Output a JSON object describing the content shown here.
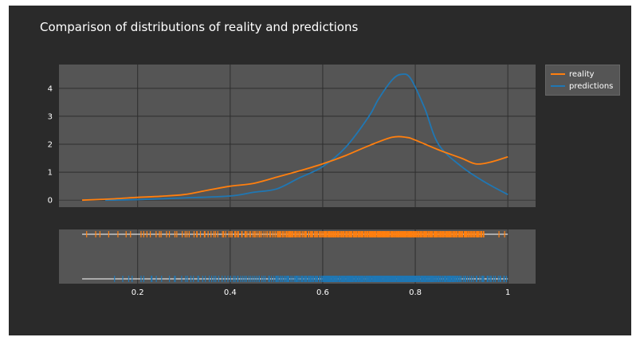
{
  "chart_data": [
    {
      "type": "line",
      "title": "Comparison of distributions of reality and predictions",
      "xlabel": "",
      "ylabel": "",
      "xlim": [
        0.03,
        1.06
      ],
      "ylim": [
        -0.25,
        4.85
      ],
      "yticks": [
        0,
        1,
        2,
        3,
        4
      ],
      "grid": true,
      "legend_position": "outside-right",
      "series": [
        {
          "name": "reality",
          "color": "#ff7f0e",
          "x": [
            0.08,
            0.15,
            0.2,
            0.25,
            0.3,
            0.35,
            0.4,
            0.45,
            0.5,
            0.55,
            0.6,
            0.65,
            0.7,
            0.75,
            0.78,
            0.8,
            0.85,
            0.9,
            0.93,
            0.96,
            1.0
          ],
          "y": [
            0.0,
            0.05,
            0.1,
            0.14,
            0.2,
            0.35,
            0.5,
            0.6,
            0.82,
            1.05,
            1.3,
            1.6,
            1.95,
            2.25,
            2.25,
            2.15,
            1.8,
            1.5,
            1.3,
            1.35,
            1.55
          ]
        },
        {
          "name": "predictions",
          "color": "#1f77b4",
          "x": [
            0.13,
            0.2,
            0.3,
            0.4,
            0.45,
            0.5,
            0.55,
            0.6,
            0.65,
            0.7,
            0.72,
            0.75,
            0.77,
            0.79,
            0.82,
            0.85,
            0.9,
            0.95,
            1.0
          ],
          "y": [
            0.0,
            0.02,
            0.08,
            0.15,
            0.28,
            0.4,
            0.8,
            1.2,
            1.9,
            3.0,
            3.6,
            4.3,
            4.5,
            4.35,
            3.3,
            2.0,
            1.2,
            0.65,
            0.2
          ]
        }
      ]
    },
    {
      "type": "scatter",
      "title": "",
      "xlabel": "",
      "ylabel": "",
      "xlim": [
        0.03,
        1.06
      ],
      "xticks": [
        0.2,
        0.4,
        0.6,
        0.8,
        1.0
      ],
      "xtick_labels": [
        "0.2",
        "0.4",
        "0.6",
        "0.8",
        "1"
      ],
      "grid": true,
      "series": [
        {
          "name": "reality",
          "color": "#ff7f0e",
          "density": [
            [
              0.08,
              0.1,
              1
            ],
            [
              0.1,
              0.2,
              6
            ],
            [
              0.2,
              0.3,
              12
            ],
            [
              0.3,
              0.4,
              18
            ],
            [
              0.4,
              0.5,
              28
            ],
            [
              0.5,
              0.6,
              45
            ],
            [
              0.6,
              0.7,
              60
            ],
            [
              0.7,
              0.8,
              75
            ],
            [
              0.8,
              0.9,
              60
            ],
            [
              0.9,
              0.95,
              25
            ],
            [
              0.98,
              1.0,
              2
            ]
          ]
        },
        {
          "name": "predictions",
          "color": "#1f77b4",
          "density": [
            [
              0.15,
              0.2,
              4
            ],
            [
              0.2,
              0.3,
              10
            ],
            [
              0.3,
              0.4,
              16
            ],
            [
              0.4,
              0.5,
              24
            ],
            [
              0.5,
              0.6,
              45
            ],
            [
              0.6,
              0.7,
              70
            ],
            [
              0.7,
              0.8,
              90
            ],
            [
              0.8,
              0.9,
              65
            ],
            [
              0.9,
              1.0,
              25
            ]
          ]
        }
      ]
    }
  ]
}
